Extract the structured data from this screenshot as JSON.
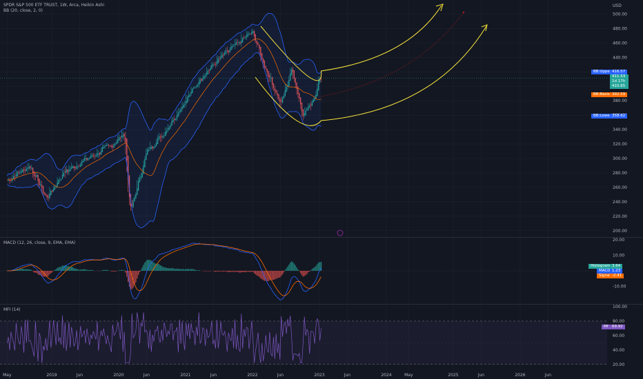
{
  "header": {
    "symbol_line": "SPDR S&P 500 ETF TRUST, 1W, Arca, Heikin Ashi",
    "bb_line": "BB (20, close, 2, 0)",
    "macd_line": "MACD (12, 26, close, 9, EMA, EMA)",
    "mfi_line": "MFI (14)"
  },
  "axis": {
    "currency": "USD",
    "price_ticks": [
      "500.00",
      "480.00",
      "460.00",
      "440.00",
      "420.00",
      "400.00",
      "380.00",
      "360.00",
      "340.00",
      "320.00",
      "300.00",
      "280.00",
      "260.00",
      "240.00",
      "220.00",
      "200.00"
    ],
    "macd_ticks": [
      "20.00",
      "10.00",
      "0.00",
      "-10.00"
    ],
    "mfi_ticks": [
      "100.00",
      "80.00",
      "60.00",
      "40.00",
      "20.00"
    ],
    "time_ticks": [
      "May",
      "2019",
      "Jun",
      "2020",
      "Jun",
      "2021",
      "Jun",
      "2022",
      "Jun",
      "2023",
      "Jun",
      "2024",
      "May",
      "2025",
      "Jun",
      "2026",
      "Jun"
    ]
  },
  "badges": {
    "bb_upper": {
      "name": "BB:Upper",
      "value": "416.57"
    },
    "price": {
      "value": "411.53"
    },
    "countdown": {
      "value": "1d 17h"
    },
    "ha_close": {
      "value": "410.65"
    },
    "bb_basis": {
      "name": "BB:Basis",
      "value": "392.59"
    },
    "bb_lower": {
      "name": "BB:Lower",
      "value": "358.62"
    },
    "histogram": {
      "name": "Histogram",
      "value": "3.64"
    },
    "macd": {
      "name": "MACD",
      "value": "1.23"
    },
    "signal": {
      "name": "Signal",
      "value": "-2.41"
    },
    "mfi": {
      "name": "Mf",
      "value": "69.92"
    }
  },
  "colors": {
    "up": "#26a69a",
    "down": "#ef5350",
    "bb": "#2962ff",
    "basis": "#ff6d00",
    "macd": "#2962ff",
    "signal": "#ff6d00",
    "mfi": "#7e57c2",
    "draw": "#ffeb3b",
    "draw_mid": "#b71c1c",
    "bg": "#131722"
  },
  "chart_data": {
    "type": "candlestick",
    "title": "SPDR S&P 500 ETF TRUST, 1W, Arca, Heikin Ashi",
    "price_ylim": [
      195,
      510
    ],
    "price_anchors": [
      [
        "2018-05",
        270
      ],
      [
        "2018-09",
        290
      ],
      [
        "2018-12",
        245
      ],
      [
        "2019-03",
        280
      ],
      [
        "2019-07",
        298
      ],
      [
        "2019-12",
        320
      ],
      [
        "2020-02",
        335
      ],
      [
        "2020-03",
        225
      ],
      [
        "2020-06",
        310
      ],
      [
        "2020-09",
        335
      ],
      [
        "2020-12",
        370
      ],
      [
        "2021-04",
        415
      ],
      [
        "2021-08",
        445
      ],
      [
        "2021-12",
        470
      ],
      [
        "2022-01",
        475
      ],
      [
        "2022-03",
        430
      ],
      [
        "2022-06",
        375
      ],
      [
        "2022-08",
        425
      ],
      [
        "2022-10",
        360
      ],
      [
        "2022-12",
        385
      ],
      [
        "2023-01",
        411.53
      ]
    ],
    "bb_upper_last": 416.57,
    "bb_basis_last": 392.59,
    "bb_lower_last": 358.62,
    "macd": {
      "histogram_last": 3.64,
      "macd_last": 1.23,
      "signal_last": -2.41,
      "ylim": [
        -20,
        20
      ]
    },
    "mfi": {
      "last": 69.92,
      "ylim": [
        15,
        100
      ],
      "bands": [
        20,
        80
      ]
    }
  }
}
